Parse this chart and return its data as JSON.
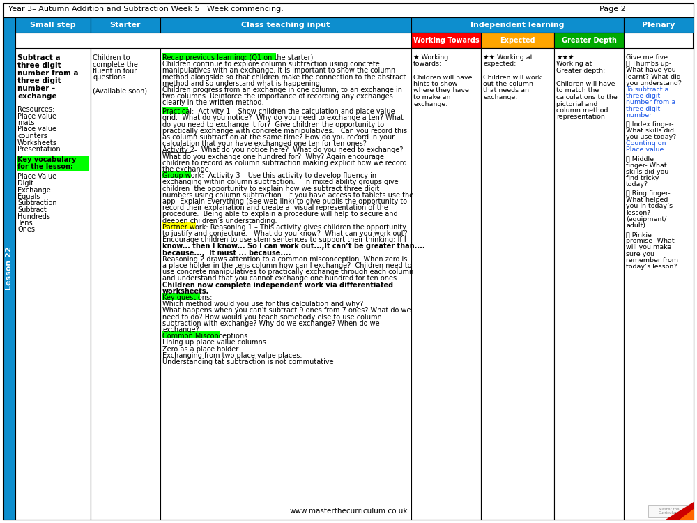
{
  "title_text": "Year 3– Autumn Addition and Subtraction Week 5   Week commencing: ________________",
  "page_text": "Page 2",
  "header_bg": "#0d8ece",
  "header_text_color": "#FFFFFF",
  "ind_wt_bg": "#FF0000",
  "ind_exp_bg": "#FFA500",
  "ind_gd_bg": "#00AA00",
  "lesson_label_bg": "#0d8ece",
  "lesson_label_text": "Lesson 22",
  "highlight_green": "#00FF00",
  "highlight_yellow": "#FFFF00",
  "small_step_title": "Subtract a\nthree digit\nnumber from a\nthree digit\nnumber –\nexchange",
  "small_step_resources": "Resources:\nPlace value\nmats\nPlace value\ncounters\nWorksheets\nPresentation",
  "small_step_vocab_header": "Key vocabulary\nfor the lesson:",
  "small_step_vocab": "Place Value\nDigit\nExchange\nEquals\nSubtraction\nSubtract\nHundreds\nTens\nOnes",
  "starter_text": "Children to\ncomplete the\nfluent in four\nquestions.\n\n(Available soon)",
  "wt_header": "Working Towards",
  "exp_header": "Expected",
  "gd_header": "Greater Depth",
  "wt_stars": "★ Working\ntowards:\n\nChildren will have\nhints to show\nwhere they have\nto make an\nexchange.",
  "exp_stars": "★★ Working at\nexpected:\n\nChildren will work\nout the column\nthat needs an\nexchange.",
  "gd_stars": "★★★\nWorking at\nGreater depth:\n\nChildren will have\nto match the\ncalculations to the\npictorial and\ncolumn method\nrepresentation",
  "plenary_lines": [
    {
      "text": "Give me five:",
      "color": "black",
      "bold": false
    },
    {
      "text": "Ⓨ Thumbs up-",
      "color": "black",
      "bold": false
    },
    {
      "text": "What have you",
      "color": "black",
      "bold": false
    },
    {
      "text": "learnt? What did",
      "color": "black",
      "bold": false
    },
    {
      "text": "you understand?",
      "color": "black",
      "bold": false
    },
    {
      "text": "To subtract a",
      "color": "#1a56e8",
      "bold": false
    },
    {
      "text": "three digit",
      "color": "#1a56e8",
      "bold": false
    },
    {
      "text": "number from a",
      "color": "#1a56e8",
      "bold": false
    },
    {
      "text": "three digit",
      "color": "#1a56e8",
      "bold": false
    },
    {
      "text": "number",
      "color": "#1a56e8",
      "bold": false
    },
    {
      "text": "",
      "color": "black",
      "bold": false
    },
    {
      "text": "Ⓘ Index finger-",
      "color": "black",
      "bold": false
    },
    {
      "text": "What skills did",
      "color": "black",
      "bold": false
    },
    {
      "text": "you use today?",
      "color": "black",
      "bold": false
    },
    {
      "text": "Counting on",
      "color": "#1a56e8",
      "bold": false
    },
    {
      "text": "Place value",
      "color": "#1a56e8",
      "bold": false
    },
    {
      "text": "",
      "color": "black",
      "bold": false
    },
    {
      "text": "Ⓙ Middle",
      "color": "black",
      "bold": false
    },
    {
      "text": "finger- What",
      "color": "black",
      "bold": false
    },
    {
      "text": "skills did you",
      "color": "black",
      "bold": false
    },
    {
      "text": "find tricky",
      "color": "black",
      "bold": false
    },
    {
      "text": "today?",
      "color": "black",
      "bold": false
    },
    {
      "text": "",
      "color": "black",
      "bold": false
    },
    {
      "text": "Ⓚ Ring finger-",
      "color": "black",
      "bold": false
    },
    {
      "text": "What helped",
      "color": "black",
      "bold": false
    },
    {
      "text": "you in today’s",
      "color": "black",
      "bold": false
    },
    {
      "text": "lesson?",
      "color": "black",
      "bold": false
    },
    {
      "text": "(equipment/",
      "color": "black",
      "bold": false
    },
    {
      "text": "adult)",
      "color": "black",
      "bold": false
    },
    {
      "text": "",
      "color": "black",
      "bold": false
    },
    {
      "text": "Ⓛ Pinkie",
      "color": "black",
      "bold": false
    },
    {
      "text": "promise- What",
      "color": "black",
      "bold": false
    },
    {
      "text": "will you make",
      "color": "black",
      "bold": false
    },
    {
      "text": "sure you",
      "color": "black",
      "bold": false
    },
    {
      "text": "remember from",
      "color": "black",
      "bold": false
    },
    {
      "text": "today’s lesson?",
      "color": "black",
      "bold": false
    }
  ],
  "ct_lines": [
    {
      "text": "Recap previous learning: (Q1 on the starter)",
      "hl": "green",
      "bold": false,
      "underline_prefix": null
    },
    {
      "text": "Children continue to explore column subtraction using concrete",
      "hl": null,
      "bold": false,
      "underline_prefix": null
    },
    {
      "text": "manipulatives with an exchange. It is important to show the column",
      "hl": null,
      "bold": false,
      "underline_prefix": null
    },
    {
      "text": "method alongside so that children make the connection to the abstract",
      "hl": null,
      "bold": false,
      "underline_prefix": null
    },
    {
      "text": "method and so understand what is happening.",
      "hl": null,
      "bold": false,
      "underline_prefix": null
    },
    {
      "text": "Children progress from an exchange in one column, to an exchange in",
      "hl": null,
      "bold": false,
      "underline_prefix": null
    },
    {
      "text": "two columns. Reinforce the importance of recording any exchanges",
      "hl": null,
      "bold": false,
      "underline_prefix": null
    },
    {
      "text": "clearly in the written method.",
      "hl": null,
      "bold": false,
      "underline_prefix": null
    },
    {
      "text": "",
      "hl": null,
      "bold": false,
      "underline_prefix": null
    },
    {
      "text": "Practical:  Activity 1 – Show children the calculation and place value",
      "hl": "green_prefix",
      "bold": false,
      "underline_prefix": "Practical:"
    },
    {
      "text": "grid.  What do you notice?  Why do you need to exchange a ten? What",
      "hl": null,
      "bold": false,
      "underline_prefix": null
    },
    {
      "text": "do you need to exchange it for?  Give children the opportunity to",
      "hl": null,
      "bold": false,
      "underline_prefix": null
    },
    {
      "text": "practically exchange with concrete manipulatives.   Can you record this",
      "hl": null,
      "bold": false,
      "underline_prefix": null
    },
    {
      "text": "as column subtraction at the same time? How do you record in your",
      "hl": null,
      "bold": false,
      "underline_prefix": null
    },
    {
      "text": "calculation that your have exchanged one ten for ten ones?",
      "hl": null,
      "bold": false,
      "underline_prefix": null
    },
    {
      "text": "Activity 2-  What do you notice here?  What do you need to exchange?",
      "hl": null,
      "bold": false,
      "underline_prefix": "Activity 2-"
    },
    {
      "text": "What do you exchange one hundred for?  Why? Again encourage",
      "hl": null,
      "bold": false,
      "underline_prefix": null
    },
    {
      "text": "children to record as column subtraction making explicit how we record",
      "hl": null,
      "bold": false,
      "underline_prefix": null
    },
    {
      "text": "the exchange.",
      "hl": null,
      "bold": false,
      "underline_prefix": null
    },
    {
      "text": "Group work:  Activity 3 – Use this activity to develop fluency in",
      "hl": "green_prefix",
      "bold": false,
      "underline_prefix": null
    },
    {
      "text": "exchanging within column subtraction.    In mixed ability groups give",
      "hl": null,
      "bold": false,
      "underline_prefix": null
    },
    {
      "text": "children  the opportunity to explain how we subtract three digit",
      "hl": null,
      "bold": false,
      "underline_prefix": null
    },
    {
      "text": "numbers using column subtraction.  If you have access to tablets use the",
      "hl": null,
      "bold": false,
      "underline_prefix": null
    },
    {
      "text": "app- Explain Everything (See web link) to give pupils the opportunity to",
      "hl": null,
      "bold": false,
      "underline_prefix": null
    },
    {
      "text": "record their explanation and create a  visual representation of the",
      "hl": null,
      "bold": false,
      "underline_prefix": null
    },
    {
      "text": "procedure.  Being able to explain a procedure will help to secure and",
      "hl": null,
      "bold": false,
      "underline_prefix": null
    },
    {
      "text": "deepen children’s understanding.",
      "hl": null,
      "bold": false,
      "underline_prefix": null
    },
    {
      "text": "Partner work: Reasoning 1 – This activity gives children the opportunity",
      "hl": "yellow_prefix",
      "bold": false,
      "underline_prefix": null
    },
    {
      "text": "to justify and conjecture.   What do you know?  What can you work out?",
      "hl": null,
      "bold": false,
      "underline_prefix": null
    },
    {
      "text": "Encourage children to use stem sentences to support their thinking: If I",
      "hl": null,
      "bold": false,
      "underline_prefix": null
    },
    {
      "text": "know... then I know... So I can work out...,It can’t be greater than....",
      "hl": null,
      "bold": true,
      "underline_prefix": null
    },
    {
      "text": "because...,  It must ... because....",
      "hl": null,
      "bold": true,
      "underline_prefix": null
    },
    {
      "text": "Reasoning 2 draws attention to a common misconception. When zero is",
      "hl": null,
      "bold": false,
      "underline_prefix": null
    },
    {
      "text": "a place holder in the tens column how can I exchange?  Children need to",
      "hl": null,
      "bold": false,
      "underline_prefix": null
    },
    {
      "text": "use concrete manipulatives to practically exchange through each column",
      "hl": null,
      "bold": false,
      "underline_prefix": null
    },
    {
      "text": "and understand that you cannot exchange one hundred for ten ones.",
      "hl": null,
      "bold": false,
      "underline_prefix": null
    },
    {
      "text": "Children now complete independent work via differentiated",
      "hl": null,
      "bold": true,
      "underline_prefix": null
    },
    {
      "text": "worksheets.",
      "hl": null,
      "bold": true,
      "underline_prefix": null
    },
    {
      "text": "Key questions:",
      "hl": "green",
      "bold": false,
      "underline_prefix": null
    },
    {
      "text": "Which method would you use for this calculation and why?",
      "hl": null,
      "bold": false,
      "underline_prefix": null
    },
    {
      "text": "What happens when you can’t subtract 9 ones from 7 ones? What do we",
      "hl": null,
      "bold": false,
      "underline_prefix": null
    },
    {
      "text": "need to do? How would you teach somebody else to use column",
      "hl": null,
      "bold": false,
      "underline_prefix": null
    },
    {
      "text": "subtraction with exchange? Why do we exchange? When do we",
      "hl": null,
      "bold": false,
      "underline_prefix": null
    },
    {
      "text": "exchange?",
      "hl": null,
      "bold": false,
      "underline_prefix": null
    },
    {
      "text": "Common Misconceptions:",
      "hl": "green",
      "bold": false,
      "underline_prefix": null
    },
    {
      "text": "Lining up place value columns.",
      "hl": null,
      "bold": false,
      "underline_prefix": null
    },
    {
      "text": "Zero as a place holder.",
      "hl": null,
      "bold": false,
      "underline_prefix": null
    },
    {
      "text": "Exchanging from two place value places.",
      "hl": null,
      "bold": false,
      "underline_prefix": null
    },
    {
      "text": "Understanding tat subtraction is not commutative",
      "hl": null,
      "bold": false,
      "underline_prefix": null
    }
  ]
}
